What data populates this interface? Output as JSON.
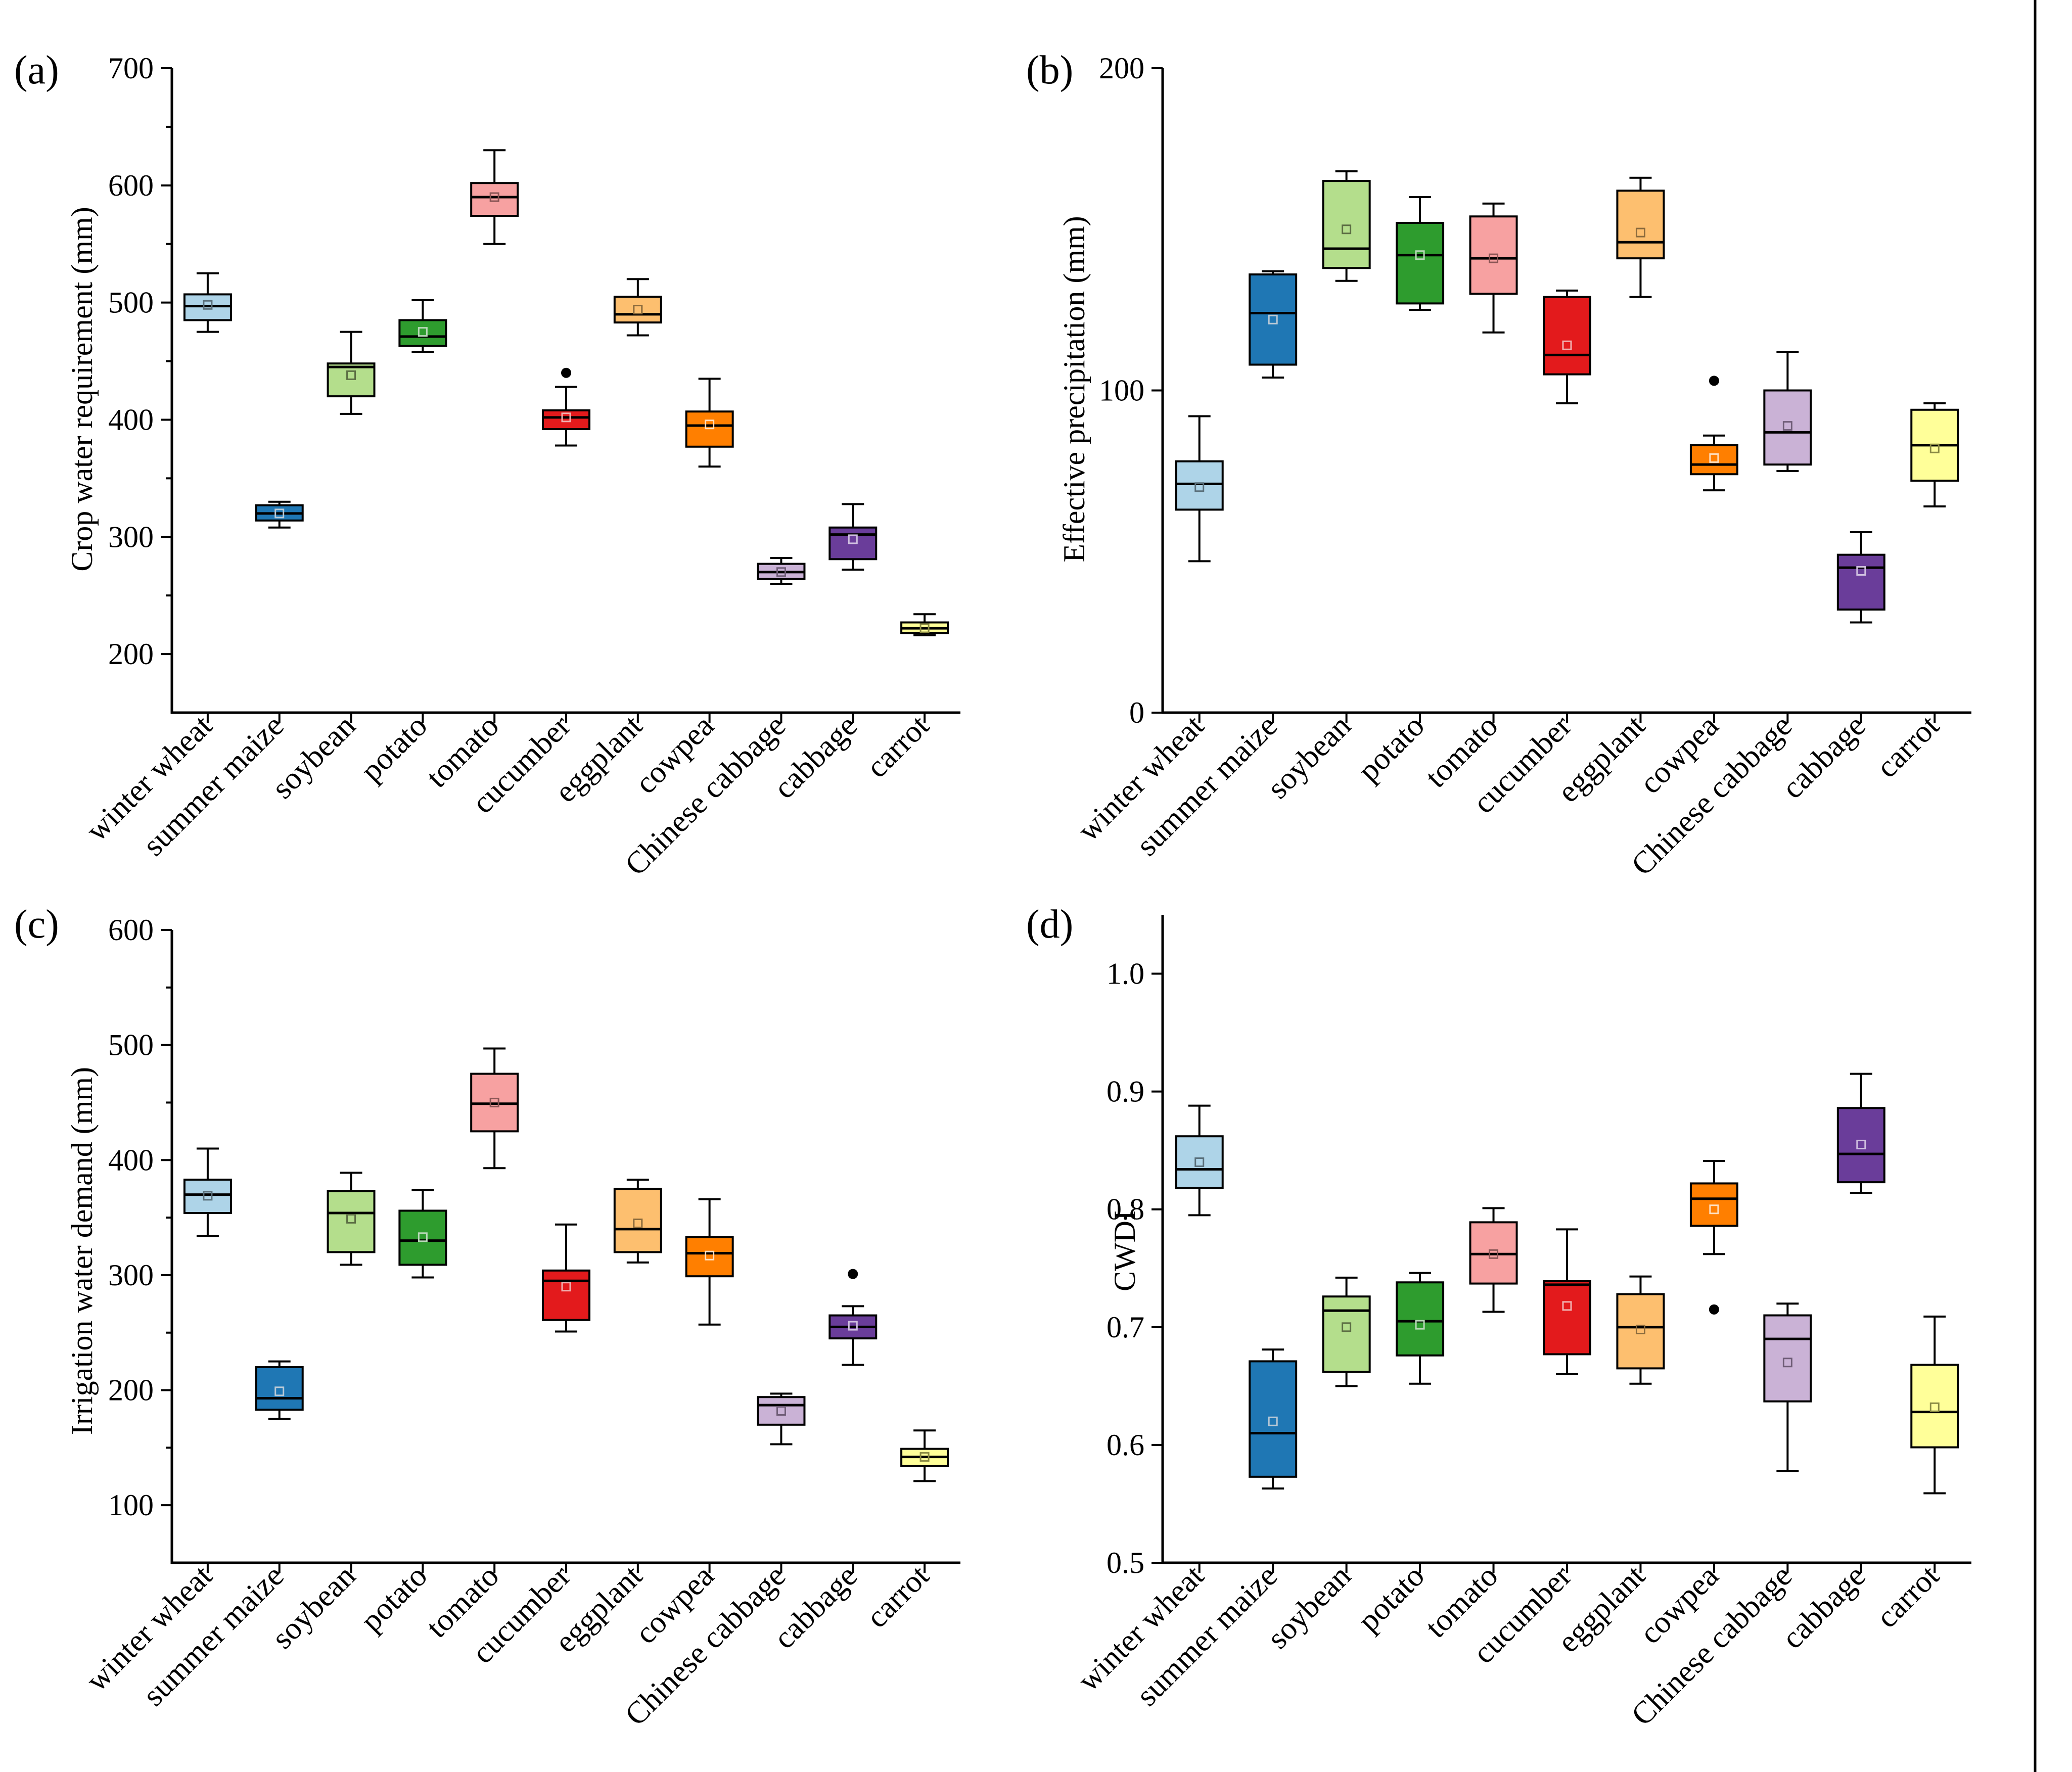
{
  "categories": [
    "winter wheat",
    "summer maize",
    "soybean",
    "potato",
    "tomato",
    "cucumber",
    "eggplant",
    "cowpea",
    "Chinese cabbage",
    "cabbage",
    "carrot"
  ],
  "colors": [
    "#aed4e8",
    "#1f77b4",
    "#b4de8c",
    "#2e9c2e",
    "#f7a1a1",
    "#e31a1c",
    "#fdbf6f",
    "#ff7f00",
    "#cab2d6",
    "#6a3d9a",
    "#ffff99"
  ],
  "mean_colors": [
    "#5a6f7a",
    "#b9c9d6",
    "#5c6e44",
    "#b8d8b8",
    "#8a5555",
    "#f0b0b0",
    "#8a6a3c",
    "#ffe0c0",
    "#6e5c76",
    "#d0c0e0",
    "#8a8a44"
  ],
  "chart_data": [
    {
      "id": "a",
      "label": "(a)",
      "type": "box",
      "ylabel": "Crop water requirement (mm)",
      "ylim": [
        150,
        700
      ],
      "yticks": [
        200,
        300,
        400,
        500,
        600,
        700
      ],
      "yminor": [
        250,
        350,
        450,
        550,
        650
      ],
      "boxes": [
        {
          "min": 475,
          "q1": 485,
          "median": 497,
          "q3": 507,
          "max": 525,
          "mean": 498,
          "outliers": []
        },
        {
          "min": 308,
          "q1": 314,
          "median": 320,
          "q3": 327,
          "max": 330,
          "mean": 320,
          "outliers": []
        },
        {
          "min": 405,
          "q1": 420,
          "median": 445,
          "q3": 448,
          "max": 475,
          "mean": 438,
          "outliers": []
        },
        {
          "min": 458,
          "q1": 463,
          "median": 471,
          "q3": 485,
          "max": 502,
          "mean": 475,
          "outliers": []
        },
        {
          "min": 550,
          "q1": 574,
          "median": 590,
          "q3": 602,
          "max": 630,
          "mean": 590,
          "outliers": []
        },
        {
          "min": 378,
          "q1": 392,
          "median": 402,
          "q3": 408,
          "max": 428,
          "mean": 402,
          "outliers": [
            440
          ]
        },
        {
          "min": 472,
          "q1": 483,
          "median": 490,
          "q3": 505,
          "max": 520,
          "mean": 494,
          "outliers": []
        },
        {
          "min": 360,
          "q1": 377,
          "median": 395,
          "q3": 407,
          "max": 435,
          "mean": 396,
          "outliers": []
        },
        {
          "min": 260,
          "q1": 264,
          "median": 270,
          "q3": 277,
          "max": 282,
          "mean": 270,
          "outliers": []
        },
        {
          "min": 272,
          "q1": 281,
          "median": 302,
          "q3": 308,
          "max": 328,
          "mean": 298,
          "outliers": []
        },
        {
          "min": 216,
          "q1": 218,
          "median": 222,
          "q3": 227,
          "max": 234,
          "mean": 222,
          "outliers": []
        }
      ]
    },
    {
      "id": "b",
      "label": "(b)",
      "type": "box",
      "ylabel": "Effective precipitation (mm)",
      "ylim": [
        0,
        200
      ],
      "yticks": [
        0,
        100,
        200
      ],
      "yminor": [],
      "boxes": [
        {
          "min": 47,
          "q1": 63,
          "median": 71,
          "q3": 78,
          "max": 92,
          "mean": 70,
          "outliers": []
        },
        {
          "min": 104,
          "q1": 108,
          "median": 124,
          "q3": 136,
          "max": 137,
          "mean": 122,
          "outliers": []
        },
        {
          "min": 134,
          "q1": 138,
          "median": 144,
          "q3": 165,
          "max": 168,
          "mean": 150,
          "outliers": []
        },
        {
          "min": 125,
          "q1": 127,
          "median": 142,
          "q3": 152,
          "max": 160,
          "mean": 142,
          "outliers": []
        },
        {
          "min": 118,
          "q1": 130,
          "median": 141,
          "q3": 154,
          "max": 158,
          "mean": 141,
          "outliers": []
        },
        {
          "min": 96,
          "q1": 105,
          "median": 111,
          "q3": 129,
          "max": 131,
          "mean": 114,
          "outliers": []
        },
        {
          "min": 129,
          "q1": 141,
          "median": 146,
          "q3": 162,
          "max": 166,
          "mean": 149,
          "outliers": []
        },
        {
          "min": 69,
          "q1": 74,
          "median": 77,
          "q3": 83,
          "max": 86,
          "mean": 79,
          "outliers": [
            103
          ]
        },
        {
          "min": 75,
          "q1": 77,
          "median": 87,
          "q3": 100,
          "max": 112,
          "mean": 89,
          "outliers": []
        },
        {
          "min": 28,
          "q1": 32,
          "median": 45,
          "q3": 49,
          "max": 56,
          "mean": 44,
          "outliers": []
        },
        {
          "min": 64,
          "q1": 72,
          "median": 83,
          "q3": 94,
          "max": 96,
          "mean": 82,
          "outliers": []
        }
      ]
    },
    {
      "id": "c",
      "label": "(c)",
      "type": "box",
      "ylabel": "Irrigation water demand (mm)",
      "ylim": [
        50,
        600
      ],
      "yticks": [
        100,
        200,
        300,
        400,
        500,
        600
      ],
      "yminor": [
        150,
        250,
        350,
        450,
        550
      ],
      "boxes": [
        {
          "min": 334,
          "q1": 354,
          "median": 370,
          "q3": 383,
          "max": 410,
          "mean": 369,
          "outliers": []
        },
        {
          "min": 175,
          "q1": 183,
          "median": 193,
          "q3": 220,
          "max": 225,
          "mean": 199,
          "outliers": []
        },
        {
          "min": 309,
          "q1": 320,
          "median": 354,
          "q3": 373,
          "max": 389,
          "mean": 349,
          "outliers": []
        },
        {
          "min": 298,
          "q1": 309,
          "median": 330,
          "q3": 356,
          "max": 374,
          "mean": 333,
          "outliers": []
        },
        {
          "min": 393,
          "q1": 425,
          "median": 449,
          "q3": 475,
          "max": 497,
          "mean": 450,
          "outliers": []
        },
        {
          "min": 251,
          "q1": 261,
          "median": 295,
          "q3": 304,
          "max": 344,
          "mean": 290,
          "outliers": []
        },
        {
          "min": 311,
          "q1": 320,
          "median": 340,
          "q3": 375,
          "max": 383,
          "mean": 345,
          "outliers": []
        },
        {
          "min": 257,
          "q1": 299,
          "median": 319,
          "q3": 333,
          "max": 366,
          "mean": 317,
          "outliers": []
        },
        {
          "min": 153,
          "q1": 170,
          "median": 187,
          "q3": 194,
          "max": 197,
          "mean": 182,
          "outliers": []
        },
        {
          "min": 222,
          "q1": 245,
          "median": 255,
          "q3": 265,
          "max": 273,
          "mean": 256,
          "outliers": [
            301
          ]
        },
        {
          "min": 121,
          "q1": 134,
          "median": 142,
          "q3": 149,
          "max": 165,
          "mean": 142,
          "outliers": []
        }
      ]
    },
    {
      "id": "d",
      "label": "(d)",
      "type": "box",
      "ylabel": "CWDI",
      "ylim": [
        0.5,
        1.05
      ],
      "yticks": [
        0.5,
        0.6,
        0.7,
        0.8,
        0.9,
        1.0
      ],
      "ytick_labels": [
        "0.5",
        "0.6",
        "0.7",
        "0.8",
        "0.9",
        "1.0"
      ],
      "yminor": [],
      "boxes": [
        {
          "min": 0.795,
          "q1": 0.818,
          "median": 0.834,
          "q3": 0.862,
          "max": 0.888,
          "mean": 0.84,
          "outliers": []
        },
        {
          "min": 0.563,
          "q1": 0.573,
          "median": 0.61,
          "q3": 0.671,
          "max": 0.681,
          "mean": 0.62,
          "outliers": []
        },
        {
          "min": 0.65,
          "q1": 0.662,
          "median": 0.714,
          "q3": 0.726,
          "max": 0.742,
          "mean": 0.7,
          "outliers": []
        },
        {
          "min": 0.652,
          "q1": 0.676,
          "median": 0.705,
          "q3": 0.738,
          "max": 0.746,
          "mean": 0.702,
          "outliers": []
        },
        {
          "min": 0.713,
          "q1": 0.737,
          "median": 0.762,
          "q3": 0.789,
          "max": 0.801,
          "mean": 0.762,
          "outliers": []
        },
        {
          "min": 0.66,
          "q1": 0.677,
          "median": 0.736,
          "q3": 0.739,
          "max": 0.783,
          "mean": 0.718,
          "outliers": []
        },
        {
          "min": 0.652,
          "q1": 0.665,
          "median": 0.7,
          "q3": 0.728,
          "max": 0.743,
          "mean": 0.698,
          "outliers": []
        },
        {
          "min": 0.762,
          "q1": 0.786,
          "median": 0.809,
          "q3": 0.822,
          "max": 0.841,
          "mean": 0.8,
          "outliers": [
            0.715
          ]
        },
        {
          "min": 0.578,
          "q1": 0.637,
          "median": 0.69,
          "q3": 0.71,
          "max": 0.72,
          "mean": 0.67,
          "outliers": []
        },
        {
          "min": 0.814,
          "q1": 0.823,
          "median": 0.847,
          "q3": 0.886,
          "max": 0.915,
          "mean": 0.855,
          "outliers": []
        },
        {
          "min": 0.559,
          "q1": 0.598,
          "median": 0.628,
          "q3": 0.668,
          "max": 0.709,
          "mean": 0.632,
          "outliers": []
        }
      ]
    }
  ]
}
